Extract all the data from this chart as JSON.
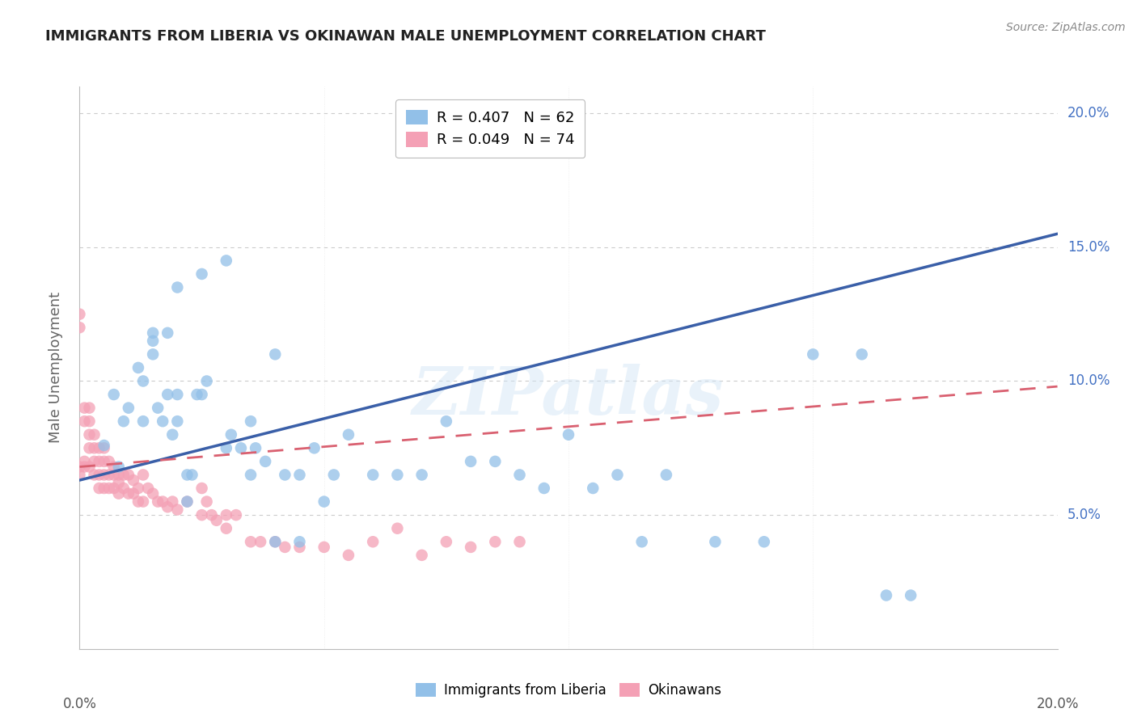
{
  "title": "IMMIGRANTS FROM LIBERIA VS OKINAWAN MALE UNEMPLOYMENT CORRELATION CHART",
  "source": "Source: ZipAtlas.com",
  "ylabel": "Male Unemployment",
  "legend_blue_R": "R = 0.407",
  "legend_blue_N": "N = 62",
  "legend_pink_R": "R = 0.049",
  "legend_pink_N": "N = 74",
  "legend_label_blue": "Immigrants from Liberia",
  "legend_label_pink": "Okinawans",
  "blue_color": "#92C0E8",
  "pink_color": "#F4A0B5",
  "blue_line_color": "#3A5FA8",
  "pink_line_color": "#D96070",
  "watermark": "ZIPatlas",
  "blue_scatter_x": [
    0.005,
    0.007,
    0.008,
    0.009,
    0.01,
    0.012,
    0.013,
    0.013,
    0.015,
    0.015,
    0.016,
    0.017,
    0.018,
    0.019,
    0.02,
    0.02,
    0.022,
    0.022,
    0.023,
    0.024,
    0.025,
    0.026,
    0.03,
    0.031,
    0.033,
    0.035,
    0.036,
    0.038,
    0.04,
    0.042,
    0.045,
    0.048,
    0.05,
    0.052,
    0.055,
    0.06,
    0.065,
    0.07,
    0.075,
    0.08,
    0.085,
    0.09,
    0.095,
    0.1,
    0.105,
    0.11,
    0.115,
    0.12,
    0.13,
    0.14,
    0.015,
    0.018,
    0.02,
    0.025,
    0.03,
    0.035,
    0.04,
    0.045,
    0.15,
    0.16,
    0.165,
    0.17
  ],
  "blue_scatter_y": [
    0.076,
    0.095,
    0.068,
    0.085,
    0.09,
    0.105,
    0.1,
    0.085,
    0.115,
    0.11,
    0.09,
    0.085,
    0.095,
    0.08,
    0.095,
    0.085,
    0.065,
    0.055,
    0.065,
    0.095,
    0.095,
    0.1,
    0.075,
    0.08,
    0.075,
    0.065,
    0.075,
    0.07,
    0.04,
    0.065,
    0.065,
    0.075,
    0.055,
    0.065,
    0.08,
    0.065,
    0.065,
    0.065,
    0.085,
    0.07,
    0.07,
    0.065,
    0.06,
    0.08,
    0.06,
    0.065,
    0.04,
    0.065,
    0.04,
    0.04,
    0.118,
    0.118,
    0.135,
    0.14,
    0.145,
    0.085,
    0.11,
    0.04,
    0.11,
    0.11,
    0.02,
    0.02
  ],
  "pink_scatter_x": [
    0.0,
    0.0,
    0.0,
    0.0,
    0.001,
    0.001,
    0.001,
    0.001,
    0.002,
    0.002,
    0.002,
    0.002,
    0.002,
    0.003,
    0.003,
    0.003,
    0.003,
    0.004,
    0.004,
    0.004,
    0.004,
    0.005,
    0.005,
    0.005,
    0.005,
    0.006,
    0.006,
    0.006,
    0.007,
    0.007,
    0.007,
    0.008,
    0.008,
    0.008,
    0.009,
    0.009,
    0.01,
    0.01,
    0.011,
    0.011,
    0.012,
    0.012,
    0.013,
    0.013,
    0.014,
    0.015,
    0.016,
    0.017,
    0.018,
    0.019,
    0.02,
    0.022,
    0.025,
    0.025,
    0.026,
    0.027,
    0.028,
    0.03,
    0.03,
    0.032,
    0.035,
    0.037,
    0.04,
    0.042,
    0.045,
    0.05,
    0.055,
    0.06,
    0.065,
    0.07,
    0.075,
    0.08,
    0.085,
    0.09
  ],
  "pink_scatter_y": [
    0.125,
    0.12,
    0.068,
    0.065,
    0.09,
    0.085,
    0.07,
    0.068,
    0.09,
    0.085,
    0.08,
    0.075,
    0.068,
    0.08,
    0.075,
    0.07,
    0.065,
    0.075,
    0.07,
    0.065,
    0.06,
    0.075,
    0.07,
    0.065,
    0.06,
    0.07,
    0.065,
    0.06,
    0.068,
    0.065,
    0.06,
    0.065,
    0.062,
    0.058,
    0.065,
    0.06,
    0.065,
    0.058,
    0.063,
    0.058,
    0.06,
    0.055,
    0.065,
    0.055,
    0.06,
    0.058,
    0.055,
    0.055,
    0.053,
    0.055,
    0.052,
    0.055,
    0.06,
    0.05,
    0.055,
    0.05,
    0.048,
    0.05,
    0.045,
    0.05,
    0.04,
    0.04,
    0.04,
    0.038,
    0.038,
    0.038,
    0.035,
    0.04,
    0.045,
    0.035,
    0.04,
    0.038,
    0.04,
    0.04
  ],
  "xlim": [
    0.0,
    0.2
  ],
  "ylim": [
    0.0,
    0.21
  ],
  "blue_line_x": [
    0.0,
    0.2
  ],
  "blue_line_y": [
    0.063,
    0.155
  ],
  "pink_line_x": [
    0.0,
    0.2
  ],
  "pink_line_y": [
    0.068,
    0.098
  ],
  "background_color": "#ffffff",
  "grid_color": "#cccccc",
  "title_color": "#222222",
  "right_tick_color": "#4472C4",
  "axis_label_color": "#666666"
}
